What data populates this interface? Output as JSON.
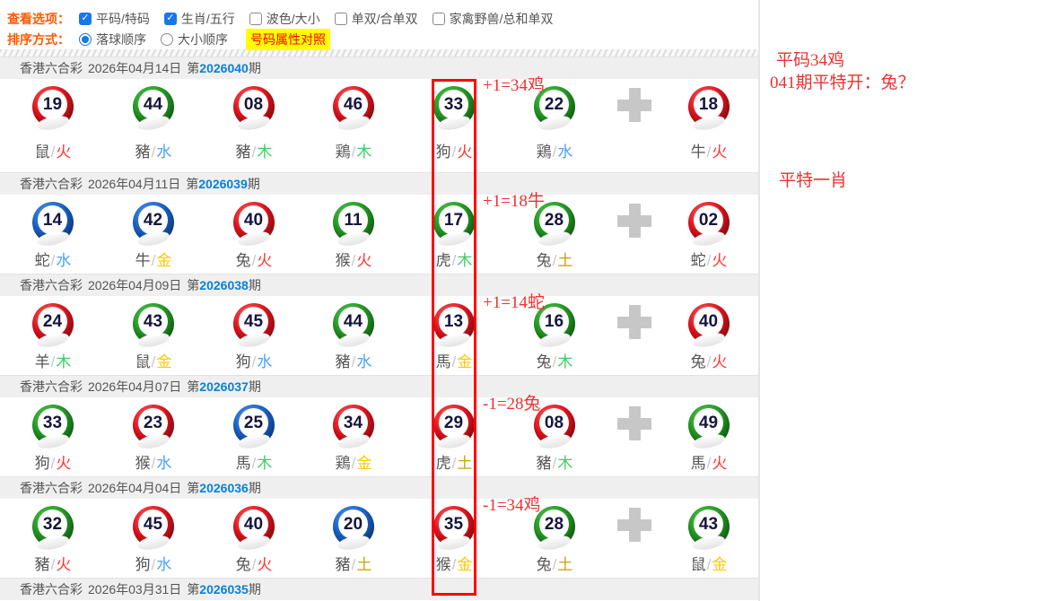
{
  "toolbar": {
    "view_label": "查看选项：",
    "sort_label": "排序方式：",
    "check_glyph": "✓",
    "checkboxes": [
      {
        "label": "平码/特码",
        "checked": true
      },
      {
        "label": "生肖/五行",
        "checked": true
      },
      {
        "label": "波色/大小",
        "checked": false
      },
      {
        "label": "单双/合单双",
        "checked": false
      },
      {
        "label": "家禽野兽/总和单双",
        "checked": false
      }
    ],
    "radios": [
      {
        "label": "落球顺序",
        "selected": true
      },
      {
        "label": "大小顺序",
        "selected": false
      }
    ],
    "compare_button_label": "号码属性对照"
  },
  "labels": {
    "lottery_name": "香港六合彩",
    "period_prefix": "第",
    "period_suffix": "期",
    "separator": "/"
  },
  "colors": {
    "ball_red": "#d9161f",
    "ball_green": "#1f8f1f",
    "ball_blue": "#1659b5",
    "element_fire_red": "#ff3333",
    "element_water_blue": "#4da0ff",
    "element_wood_green": "#3ecc66",
    "element_gold_yellow": "#ffc800",
    "element_earth_dark_gold": "#c8a300",
    "annotation_red": "#f03030",
    "highlight_box_red": "#ff0000",
    "toolbar_label_orange": "#ff5a00",
    "compare_btn_bg": "#ffff00",
    "compare_btn_text": "#ff0000",
    "period_blue": "#0780dc",
    "plus_gray": "#c7c7c7"
  },
  "draws": [
    {
      "date": "2026年04月14日",
      "period": "2026040",
      "annotation": "+1=34鸡",
      "balls": [
        {
          "num": "19",
          "color": "red",
          "zodiac": "鼠",
          "element": "火"
        },
        {
          "num": "44",
          "color": "green",
          "zodiac": "豬",
          "element": "水"
        },
        {
          "num": "08",
          "color": "red",
          "zodiac": "豬",
          "element": "木"
        },
        {
          "num": "46",
          "color": "red",
          "zodiac": "鶏",
          "element": "木"
        },
        {
          "num": "33",
          "color": "green",
          "zodiac": "狗",
          "element": "火"
        },
        {
          "num": "22",
          "color": "green",
          "zodiac": "鶏",
          "element": "水"
        },
        {
          "num": "18",
          "color": "red",
          "zodiac": "牛",
          "element": "火"
        }
      ]
    },
    {
      "date": "2026年04月11日",
      "period": "2026039",
      "annotation": "+1=18牛",
      "balls": [
        {
          "num": "14",
          "color": "blue",
          "zodiac": "蛇",
          "element": "水"
        },
        {
          "num": "42",
          "color": "blue",
          "zodiac": "牛",
          "element": "金"
        },
        {
          "num": "40",
          "color": "red",
          "zodiac": "兔",
          "element": "火"
        },
        {
          "num": "11",
          "color": "green",
          "zodiac": "猴",
          "element": "火"
        },
        {
          "num": "17",
          "color": "green",
          "zodiac": "虎",
          "element": "木"
        },
        {
          "num": "28",
          "color": "green",
          "zodiac": "兔",
          "element": "土"
        },
        {
          "num": "02",
          "color": "red",
          "zodiac": "蛇",
          "element": "火"
        }
      ]
    },
    {
      "date": "2026年04月09日",
      "period": "2026038",
      "annotation": "+1=14蛇",
      "balls": [
        {
          "num": "24",
          "color": "red",
          "zodiac": "羊",
          "element": "木"
        },
        {
          "num": "43",
          "color": "green",
          "zodiac": "鼠",
          "element": "金"
        },
        {
          "num": "45",
          "color": "red",
          "zodiac": "狗",
          "element": "水"
        },
        {
          "num": "44",
          "color": "green",
          "zodiac": "豬",
          "element": "水"
        },
        {
          "num": "13",
          "color": "red",
          "zodiac": "馬",
          "element": "金"
        },
        {
          "num": "16",
          "color": "green",
          "zodiac": "兔",
          "element": "木"
        },
        {
          "num": "40",
          "color": "red",
          "zodiac": "兔",
          "element": "火"
        }
      ]
    },
    {
      "date": "2026年04月07日",
      "period": "2026037",
      "annotation": "-1=28兔",
      "balls": [
        {
          "num": "33",
          "color": "green",
          "zodiac": "狗",
          "element": "火"
        },
        {
          "num": "23",
          "color": "red",
          "zodiac": "猴",
          "element": "水"
        },
        {
          "num": "25",
          "color": "blue",
          "zodiac": "馬",
          "element": "木"
        },
        {
          "num": "34",
          "color": "red",
          "zodiac": "鶏",
          "element": "金"
        },
        {
          "num": "29",
          "color": "red",
          "zodiac": "虎",
          "element": "土"
        },
        {
          "num": "08",
          "color": "red",
          "zodiac": "豬",
          "element": "木"
        },
        {
          "num": "49",
          "color": "green",
          "zodiac": "馬",
          "element": "火"
        }
      ]
    },
    {
      "date": "2026年04月04日",
      "period": "2026036",
      "annotation": "-1=34鸡",
      "balls": [
        {
          "num": "32",
          "color": "green",
          "zodiac": "豬",
          "element": "火"
        },
        {
          "num": "45",
          "color": "red",
          "zodiac": "狗",
          "element": "水"
        },
        {
          "num": "40",
          "color": "red",
          "zodiac": "兔",
          "element": "火"
        },
        {
          "num": "20",
          "color": "blue",
          "zodiac": "豬",
          "element": "土"
        },
        {
          "num": "35",
          "color": "red",
          "zodiac": "猴",
          "element": "金"
        },
        {
          "num": "28",
          "color": "green",
          "zodiac": "兔",
          "element": "土"
        },
        {
          "num": "43",
          "color": "green",
          "zodiac": "鼠",
          "element": "金"
        }
      ]
    },
    {
      "date": "2026年03月31日",
      "period": "2026035",
      "balls": []
    }
  ],
  "notes": [
    {
      "text": "平码34鸡"
    },
    {
      "text": "041期平特开：兔？"
    },
    {
      "text": "平特一肖"
    }
  ]
}
